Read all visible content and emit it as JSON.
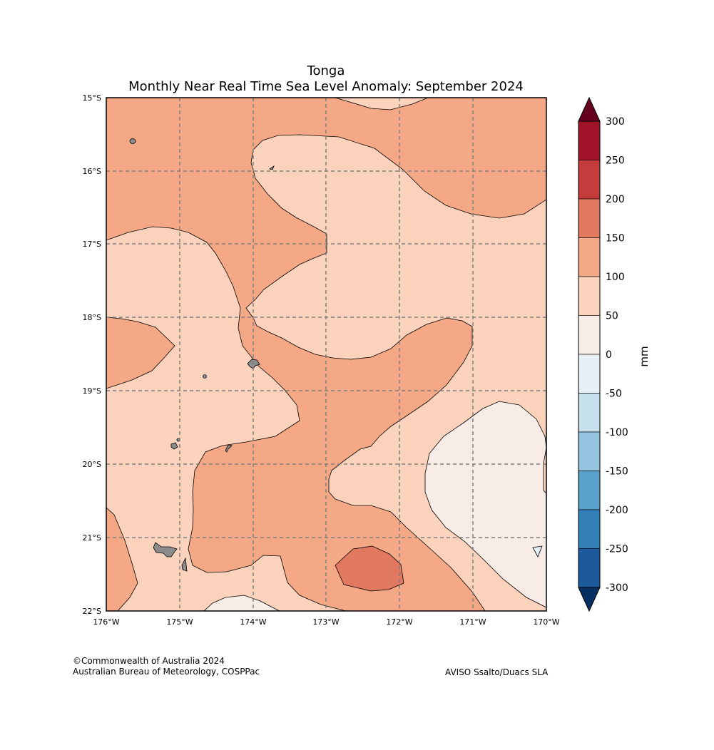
{
  "title": {
    "line1": "Tonga",
    "line2": "Monthly Near Real Time Sea Level Anomaly: September 2024"
  },
  "map": {
    "lat_ticks": [
      "15°S",
      "16°S",
      "17°S",
      "18°S",
      "19°S",
      "20°S",
      "21°S",
      "22°S"
    ],
    "lon_ticks": [
      "176°W",
      "175°W",
      "174°W",
      "173°W",
      "172°W",
      "171°W",
      "170°W"
    ],
    "gridlines": "dashed",
    "region": "Tonga"
  },
  "colorbar": {
    "unit_label": "mm",
    "tick_labels": [
      "300",
      "250",
      "200",
      "150",
      "100",
      "50",
      "0",
      "-50",
      "-100",
      "-150",
      "-200",
      "-250",
      "-300"
    ],
    "over_color": "#67001f",
    "under_color": "#053061",
    "bins": [
      {
        "range": "250 to 300",
        "color": "#a01228"
      },
      {
        "range": "200 to 250",
        "color": "#c43c3c"
      },
      {
        "range": "150 to 200",
        "color": "#e17860"
      },
      {
        "range": "100 to 150",
        "color": "#f5a886"
      },
      {
        "range": "50 to 100",
        "color": "#fbd2bc"
      },
      {
        "range": "0 to 50",
        "color": "#f7ece6"
      },
      {
        "range": "-50 to 0",
        "color": "#e6eff4"
      },
      {
        "range": "-100 to -50",
        "color": "#c5dfec"
      },
      {
        "range": "-150 to -100",
        "color": "#94c4df"
      },
      {
        "range": "-200 to -150",
        "color": "#5aa1cb"
      },
      {
        "range": "-250 to -200",
        "color": "#3480b9"
      },
      {
        "range": "-300 to -250",
        "color": "#1c5a9b"
      }
    ]
  },
  "credits": {
    "copyright_line1": "©Commonwealth of Australia 2024",
    "copyright_line2": "Australian Bureau of Meteorology, COSPPac",
    "source": "AVISO Ssalto/Duacs SLA"
  }
}
